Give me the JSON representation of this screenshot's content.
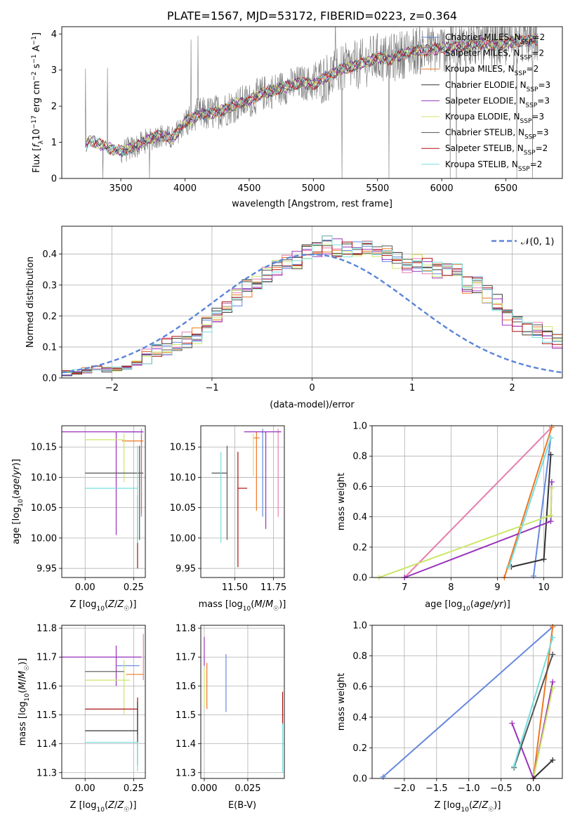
{
  "colors": {
    "MILES_Chabrier": "#6688dd",
    "MILES_Salpeter": "#e67eaf",
    "MILES_Kroupa": "#ee7722",
    "ELODIE_Chabrier": "#333333",
    "ELODIE_Salpeter": "#9933bb",
    "ELODIE_Kroupa": "#cce66a",
    "STELIB_Chabrier": "#555555",
    "STELIB_Salpeter": "#aa1111",
    "STELIB_Kroupa": "#77dddd",
    "spectrum": "#777777",
    "normal": "#5b84d8",
    "grid": "#b0b0b0"
  },
  "chart_data": [
    {
      "type": "line",
      "title": "PLATE=1567, MJD=53172, FIBERID=0223, z=0.364",
      "xlabel": "wavelength [Angstrom, rest frame]",
      "ylabel": "Flux [f_λ10^-17 erg cm^-2 s^-1 A^-1]",
      "xlim": [
        3040,
        6940
      ],
      "ylim": [
        0,
        4.2
      ],
      "xticks": [
        "3500",
        "4000",
        "4500",
        "5000",
        "5500",
        "6000",
        "6500"
      ],
      "yticks": [
        "0",
        "1",
        "2",
        "3",
        "4"
      ],
      "grid": false,
      "legend_position": "top-right",
      "legend": [
        {
          "base": "Chabrier MILES, N",
          "sub": "SSP",
          "tail": "=2"
        },
        {
          "base": "Salpeter MILES, N",
          "sub": "SSP",
          "tail": "=2"
        },
        {
          "base": "Kroupa MILES, N",
          "sub": "SSP",
          "tail": "=2"
        },
        {
          "base": "Chabrier ELODIE, N",
          "sub": "SSP",
          "tail": "=3"
        },
        {
          "base": "Salpeter ELODIE, N",
          "sub": "SSP",
          "tail": "=3"
        },
        {
          "base": "Kroupa ELODIE, N",
          "sub": "SSP",
          "tail": "=3"
        },
        {
          "base": "Chabrier STELIB, N",
          "sub": "SSP",
          "tail": "=3"
        },
        {
          "base": "Salpeter STELIB, N",
          "sub": "SSP",
          "tail": "=2"
        },
        {
          "base": "Kroupa STELIB, N",
          "sub": "SSP",
          "tail": "=2"
        }
      ],
      "continuum": [
        [
          3220,
          0.8
        ],
        [
          3250,
          1.05
        ],
        [
          3300,
          1.0
        ],
        [
          3400,
          0.85
        ],
        [
          3500,
          0.75
        ],
        [
          3600,
          0.85
        ],
        [
          3700,
          1.05
        ],
        [
          3800,
          1.2
        ],
        [
          3900,
          1.1
        ],
        [
          4000,
          1.55
        ],
        [
          4100,
          1.75
        ],
        [
          4200,
          1.8
        ],
        [
          4300,
          1.9
        ],
        [
          4400,
          2.05
        ],
        [
          4500,
          2.15
        ],
        [
          4600,
          2.35
        ],
        [
          4700,
          2.45
        ],
        [
          4800,
          2.55
        ],
        [
          4900,
          2.65
        ],
        [
          5000,
          2.6
        ],
        [
          5100,
          2.8
        ],
        [
          5200,
          3.0
        ],
        [
          5300,
          3.1
        ],
        [
          5400,
          3.2
        ],
        [
          5500,
          3.35
        ],
        [
          5600,
          3.3
        ],
        [
          5700,
          3.45
        ],
        [
          5800,
          3.55
        ],
        [
          5900,
          3.55
        ],
        [
          6000,
          3.6
        ],
        [
          6100,
          3.65
        ],
        [
          6200,
          3.7
        ],
        [
          6300,
          3.75
        ],
        [
          6400,
          3.7
        ],
        [
          6500,
          3.75
        ],
        [
          6600,
          3.8
        ],
        [
          6750,
          3.85
        ]
      ]
    },
    {
      "type": "line",
      "xlabel": "(data-model)/error",
      "ylabel": "Normed distribution",
      "xlim": [
        -2.5,
        2.5
      ],
      "ylim": [
        0,
        0.49
      ],
      "xticks": [
        "−2",
        "−1",
        "0",
        "1",
        "2"
      ],
      "yticks": [
        "0.0",
        "0.1",
        "0.2",
        "0.3",
        "0.4"
      ],
      "grid": true,
      "legend_position": "top-right",
      "legend": [
        "𝒩(0, 1)"
      ],
      "bin_width": 0.1,
      "bin_start": -2.5,
      "series_mean": [
        0.015,
        0.02,
        0.025,
        0.03,
        0.025,
        0.03,
        0.035,
        0.05,
        0.065,
        0.08,
        0.1,
        0.11,
        0.12,
        0.14,
        0.17,
        0.2,
        0.23,
        0.26,
        0.29,
        0.3,
        0.33,
        0.35,
        0.37,
        0.38,
        0.41,
        0.42,
        0.43,
        0.42,
        0.41,
        0.415,
        0.42,
        0.415,
        0.4,
        0.38,
        0.36,
        0.37,
        0.36,
        0.35,
        0.35,
        0.36,
        0.3,
        0.3,
        0.27,
        0.24,
        0.2,
        0.18,
        0.16,
        0.15,
        0.14,
        0.12,
        0.1,
        0.085,
        0.08,
        0.07,
        0.06,
        0.05,
        0.04,
        0.03,
        0.02,
        0.015,
        0.01,
        0.01,
        0.01,
        0.01,
        0.005,
        0.005,
        0.005,
        0.005,
        0.005,
        0.005,
        0.005,
        0.005,
        0.005,
        0.005,
        0.005,
        0.005
      ],
      "normal": {
        "mean": 0,
        "sigma": 1,
        "label": "𝒩(0, 1)"
      }
    },
    {
      "type": "scatter",
      "panel": "age-vs-Z",
      "xlabel": "Z [log10(Z/Z☉)]",
      "ylabel": "age [log10(age/yr)]",
      "xlim": [
        -0.12,
        0.31
      ],
      "ylim": [
        9.935,
        10.185
      ],
      "xticks": [
        "0.00",
        "0.25"
      ],
      "yticks": [
        "9.95",
        "10.00",
        "10.05",
        "10.10",
        "10.15"
      ],
      "points": [
        {
          "color": "MILES_Chabrier",
          "x": 0.29,
          "xerr": [
            0.1,
            0.01
          ],
          "y": 10.175,
          "yerr": [
            0.14,
            0.005
          ]
        },
        {
          "color": "MILES_Salpeter",
          "x": 0.29,
          "xerr": [
            0.02,
            0.01
          ],
          "y": 10.175,
          "yerr": [
            0.14,
            0.005
          ]
        },
        {
          "color": "MILES_Kroupa",
          "x": 0.29,
          "xerr": [
            0.1,
            0.01
          ],
          "y": 10.16,
          "yerr": [
            0.12,
            0.01
          ]
        },
        {
          "color": "ELODIE_Salpeter",
          "x": 0.16,
          "xerr": [
            0.28,
            0.14
          ],
          "y": 10.175,
          "yerr": [
            0.17,
            0.0
          ]
        },
        {
          "color": "ELODIE_Kroupa",
          "x": 0.2,
          "xerr": [
            0.2,
            0.0
          ],
          "y": 10.162,
          "yerr": [
            0.07,
            0.01
          ]
        },
        {
          "color": "STELIB_Chabrier",
          "x": 0.28,
          "xerr": [
            0.28,
            0.02
          ],
          "y": 10.107,
          "yerr": [
            0.11,
            0.045
          ]
        },
        {
          "color": "STELIB_Salpeter",
          "x": 0.27,
          "xerr": [
            0.0,
            0.0
          ],
          "y": 10.03,
          "yerr": [
            0.08,
            0.04
          ]
        },
        {
          "color": "STELIB_Kroupa",
          "x": 0.27,
          "xerr": [
            0.27,
            0.0
          ],
          "y": 10.082,
          "yerr": [
            0.09,
            0.07
          ]
        }
      ]
    },
    {
      "type": "scatter",
      "panel": "age-vs-mass",
      "xlabel": "mass [log10(M/M☉)]",
      "xlim": [
        11.28,
        11.82
      ],
      "ylim": [
        9.935,
        10.185
      ],
      "xticks": [
        "11.50",
        "11.75"
      ],
      "yticks": [
        "9.95",
        "10.00",
        "10.05",
        "10.10",
        "10.15"
      ],
      "points": [
        {
          "color": "MILES_Chabrier",
          "x": 11.68,
          "xerr": [
            0.01,
            0.02
          ],
          "y": 10.175,
          "yerr": [
            0.14,
            0.005
          ]
        },
        {
          "color": "MILES_Salpeter",
          "x": 11.78,
          "xerr": [
            0.0,
            0.0
          ],
          "y": 10.175,
          "yerr": [
            0.14,
            0.005
          ]
        },
        {
          "color": "MILES_Kroupa",
          "x": 11.64,
          "xerr": [
            0.02,
            0.02
          ],
          "y": 10.165,
          "yerr": [
            0.12,
            0.01
          ]
        },
        {
          "color": "ELODIE_Salpeter",
          "x": 11.7,
          "xerr": [
            0.14,
            0.1
          ],
          "y": 10.175,
          "yerr": [
            0.16,
            0.0
          ]
        },
        {
          "color": "ELODIE_Kroupa",
          "x": 11.62,
          "xerr": [
            0.0,
            0.0
          ],
          "y": 10.162,
          "yerr": [
            0.06,
            0.01
          ]
        },
        {
          "color": "STELIB_Chabrier",
          "x": 11.45,
          "xerr": [
            0.1,
            0.0
          ],
          "y": 10.107,
          "yerr": [
            0.11,
            0.045
          ]
        },
        {
          "color": "STELIB_Salpeter",
          "x": 11.52,
          "xerr": [
            0.0,
            0.06
          ],
          "y": 10.082,
          "yerr": [
            0.13,
            0.06
          ]
        },
        {
          "color": "STELIB_Kroupa",
          "x": 11.41,
          "xerr": [
            0.0,
            0.0
          ],
          "y": 10.082,
          "yerr": [
            0.09,
            0.06
          ]
        }
      ]
    },
    {
      "type": "line",
      "panel": "mass-weight-vs-age",
      "xlabel": "age [log10(age/yr)]",
      "ylabel": "mass weight",
      "xlim": [
        6.3,
        10.4
      ],
      "ylim": [
        0,
        1
      ],
      "xticks": [
        "7",
        "8",
        "9",
        "10"
      ],
      "yticks": [
        "0.0",
        "0.2",
        "0.4",
        "0.6",
        "0.8",
        "1.0"
      ],
      "grid": true,
      "series": [
        {
          "color": "MILES_Chabrier",
          "points": [
            [
              9.78,
              0.01
            ],
            [
              10.15,
              0.92
            ]
          ]
        },
        {
          "color": "MILES_Salpeter",
          "points": [
            [
              7.0,
              0.0
            ],
            [
              10.17,
              0.99
            ]
          ]
        },
        {
          "color": "MILES_Kroupa",
          "points": [
            [
              9.15,
              0.0
            ],
            [
              10.17,
              0.99
            ]
          ]
        },
        {
          "color": "ELODIE_Chabrier",
          "points": [
            [
              9.3,
              0.07
            ],
            [
              10.0,
              0.12
            ],
            [
              10.15,
              0.81
            ]
          ]
        },
        {
          "color": "ELODIE_Salpeter",
          "points": [
            [
              7.0,
              0.0
            ],
            [
              10.15,
              0.37
            ],
            [
              10.17,
              0.63
            ]
          ]
        },
        {
          "color": "ELODIE_Kroupa",
          "points": [
            [
              6.45,
              0.0
            ],
            [
              10.15,
              0.41
            ],
            [
              10.17,
              0.59
            ]
          ]
        },
        {
          "color": "STELIB_Kroupa",
          "points": [
            [
              9.25,
              0.07
            ],
            [
              10.15,
              0.92
            ]
          ]
        }
      ]
    },
    {
      "type": "scatter",
      "panel": "mass-vs-Z",
      "xlabel": "Z [log10(Z/Z☉)]",
      "ylabel": "mass [log10(M/M☉)]",
      "xlim": [
        -0.12,
        0.31
      ],
      "ylim": [
        11.28,
        11.81
      ],
      "xticks": [
        "0.00",
        "0.25"
      ],
      "yticks": [
        "11.3",
        "11.4",
        "11.5",
        "11.6",
        "11.7",
        "11.8"
      ],
      "points": [
        {
          "color": "MILES_Salpeter",
          "x": 0.3,
          "xerr": [
            0.0,
            0.0
          ],
          "y": 11.7,
          "yerr": [
            0.08,
            0.08
          ]
        },
        {
          "color": "MILES_Chabrier",
          "x": 0.23,
          "xerr": [
            0.07,
            0.05
          ],
          "y": 11.67,
          "yerr": [
            0.0,
            0.0
          ]
        },
        {
          "color": "ELODIE_Salpeter",
          "x": 0.16,
          "xerr": [
            0.28,
            0.13
          ],
          "y": 11.7,
          "yerr": [
            0.1,
            0.04
          ]
        },
        {
          "color": "MILES_Kroupa",
          "x": 0.27,
          "xerr": [
            0.06,
            0.03
          ],
          "y": 11.64,
          "yerr": [
            0.0,
            0.0
          ]
        },
        {
          "color": "ELODIE_Kroupa",
          "x": 0.2,
          "xerr": [
            0.2,
            0.03
          ],
          "y": 11.62,
          "yerr": [
            0.12,
            0.07
          ]
        },
        {
          "color": "STELIB_Chabrier",
          "x": 0.2,
          "xerr": [
            0.2,
            0.0
          ],
          "y": 11.65,
          "yerr": [
            0.0,
            0.0
          ]
        },
        {
          "color": "STELIB_Salpeter",
          "x": 0.27,
          "xerr": [
            0.27,
            0.0
          ],
          "y": 11.52,
          "yerr": [
            0.09,
            0.04
          ]
        },
        {
          "color": "ELODIE_Chabrier",
          "x": 0.27,
          "xerr": [
            0.27,
            0.0
          ],
          "y": 11.445,
          "yerr": [
            0.12,
            0.1
          ]
        },
        {
          "color": "STELIB_Kroupa",
          "x": 0.27,
          "xerr": [
            0.27,
            0.0
          ],
          "y": 11.405,
          "yerr": [
            0.1,
            0.0
          ]
        }
      ]
    },
    {
      "type": "scatter",
      "panel": "mass-vs-EBV",
      "xlabel": "E(B-V)",
      "xlim": [
        -0.002,
        0.046
      ],
      "ylim": [
        11.28,
        11.81
      ],
      "xticks": [
        "0.000",
        "0.025"
      ],
      "yticks": [
        "11.3",
        "11.4",
        "11.5",
        "11.6",
        "11.7",
        "11.8"
      ],
      "points": [
        {
          "color": "ELODIE_Salpeter",
          "x": 0.0,
          "y": 11.72,
          "yerr": [
            0.05,
            0.05
          ]
        },
        {
          "color": "ELODIE_Kroupa",
          "x": 0.0,
          "y": 11.6,
          "yerr": [
            0.07,
            0.06
          ]
        },
        {
          "color": "MILES_Kroupa",
          "x": 0.0015,
          "y": 11.6,
          "yerr": [
            0.08,
            0.08
          ]
        },
        {
          "color": "MILES_Chabrier",
          "x": 0.0125,
          "y": 11.61,
          "yerr": [
            0.1,
            0.1
          ]
        },
        {
          "color": "STELIB_Salpeter",
          "x": 0.045,
          "y": 11.53,
          "yerr": [
            0.06,
            0.05
          ]
        },
        {
          "color": "STELIB_Kroupa",
          "x": 0.045,
          "y": 11.39,
          "yerr": [
            0.09,
            0.08
          ]
        }
      ]
    },
    {
      "type": "line",
      "panel": "mass-weight-vs-Z",
      "xlabel": "Z [log10(Z/Z☉)]",
      "ylabel": "mass weight",
      "xlim": [
        -2.5,
        0.45
      ],
      "ylim": [
        0,
        1
      ],
      "xticks": [
        "−2.0",
        "−1.5",
        "−1.0",
        "−0.5",
        "0.0"
      ],
      "yticks": [
        "0.0",
        "0.2",
        "0.4",
        "0.6",
        "0.8",
        "1.0"
      ],
      "grid": true,
      "series": [
        {
          "color": "MILES_Chabrier",
          "points": [
            [
              -2.33,
              0.01
            ],
            [
              0.3,
              0.99
            ]
          ]
        },
        {
          "color": "MILES_Kroupa",
          "points": [
            [
              0.0,
              0.0
            ],
            [
              0.3,
              0.99
            ]
          ]
        },
        {
          "color": "ELODIE_Salpeter",
          "points": [
            [
              -0.33,
              0.36
            ],
            [
              0.0,
              0.0
            ],
            [
              0.3,
              0.63
            ]
          ]
        },
        {
          "color": "ELODIE_Kroupa",
          "points": [
            [
              0.0,
              0.0
            ],
            [
              0.3,
              0.59
            ]
          ]
        },
        {
          "color": "STELIB_Chabrier",
          "points": [
            [
              -0.3,
              0.07
            ],
            [
              0.3,
              0.81
            ]
          ]
        },
        {
          "color": "ELODIE_Chabrier",
          "points": [
            [
              0.0,
              0.0
            ],
            [
              0.3,
              0.12
            ]
          ]
        },
        {
          "color": "STELIB_Kroupa",
          "points": [
            [
              -0.3,
              0.08
            ],
            [
              0.3,
              0.92
            ]
          ]
        }
      ]
    }
  ]
}
